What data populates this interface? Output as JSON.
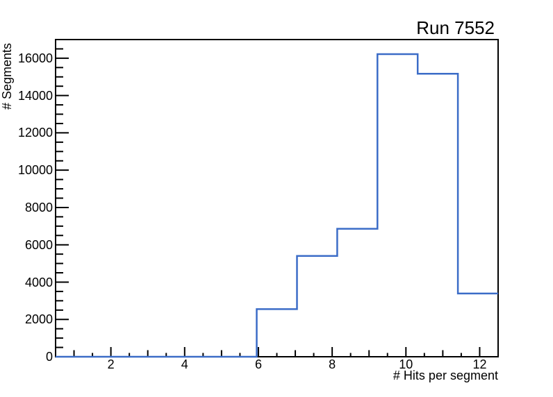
{
  "chart_data": {
    "type": "bar",
    "style": "histogram-step-outline",
    "title": "Run 7552",
    "xlabel": "# Hits per segment",
    "ylabel": "# Segments",
    "bin_edges": [
      0.5,
      1.5909,
      2.6818,
      3.7727,
      4.8636,
      5.9545,
      7.0455,
      8.1364,
      9.2273,
      10.3182,
      11.4091,
      12.5
    ],
    "counts": [
      0,
      0,
      0,
      0,
      0,
      2550,
      5400,
      6860,
      16220,
      15170,
      3390
    ],
    "xlim": [
      0.5,
      12.5
    ],
    "ylim": [
      0,
      17000
    ],
    "x_major_ticks": [
      2,
      4,
      6,
      8,
      10,
      12
    ],
    "x_tick_labels": [
      "2",
      "4",
      "6",
      "8",
      "10",
      "12"
    ],
    "x_medium_ticks": [
      1,
      3,
      5,
      7,
      9,
      11
    ],
    "x_minor_tick_step": 0.5,
    "y_major_tick_step": 2000,
    "y_minor_tick_step": 500,
    "y_tick_labels": [
      "0",
      "2000",
      "4000",
      "6000",
      "8000",
      "10000",
      "12000",
      "14000",
      "16000"
    ],
    "grid": false,
    "legend": null,
    "colors": {
      "line_color": "#3b6cc7",
      "axis_color": "#000000",
      "background": "#ffffff"
    }
  }
}
